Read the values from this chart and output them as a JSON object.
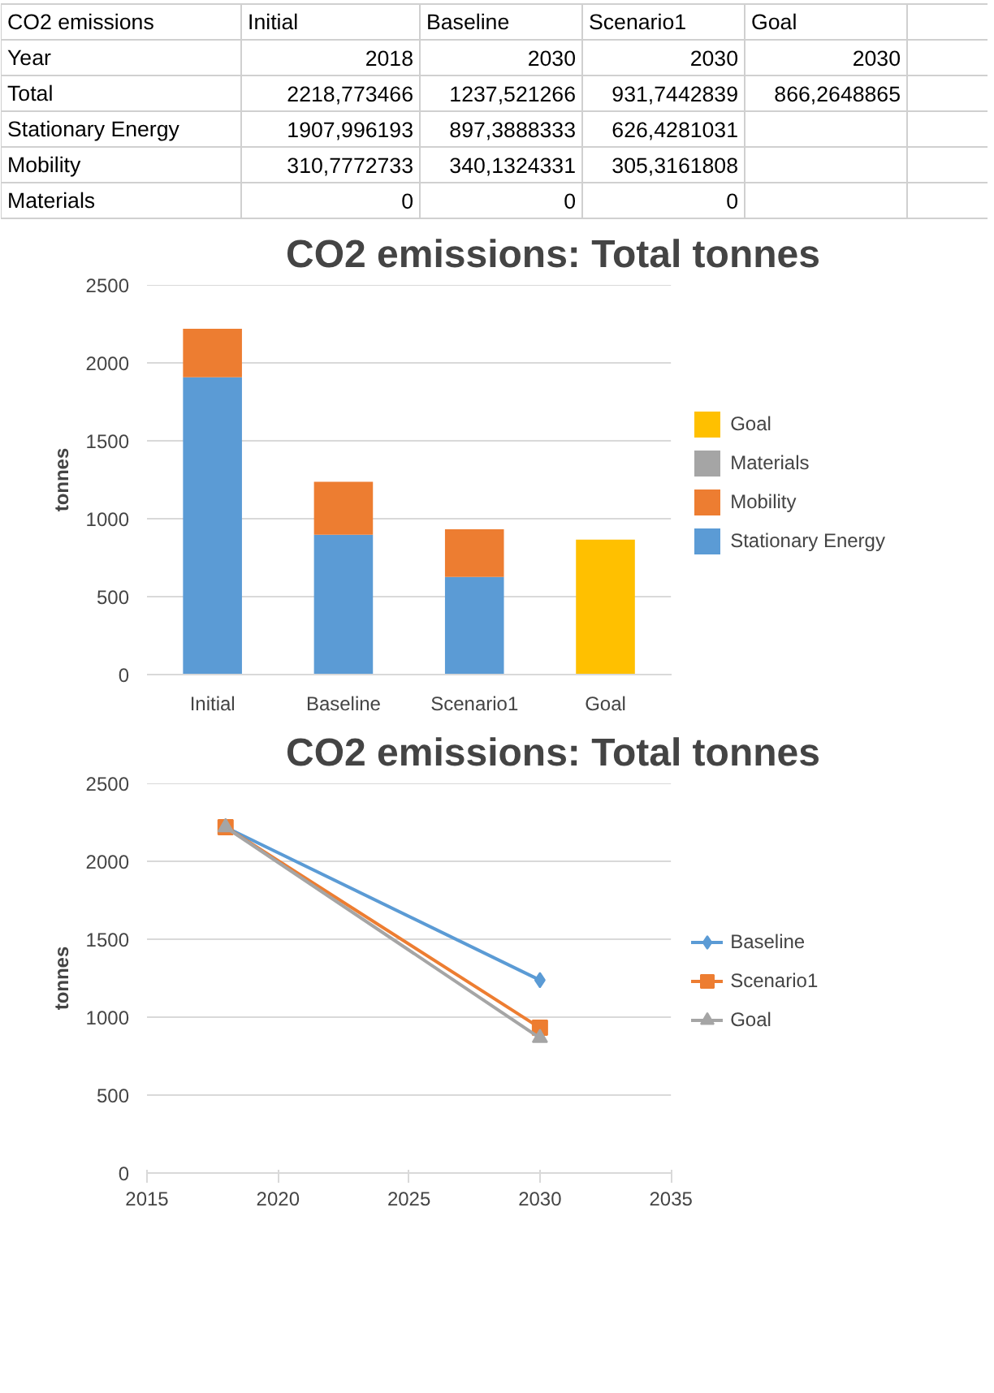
{
  "chart_data": [
    {
      "type": "other",
      "title": "CO2 emissions",
      "categories": [
        "Initial",
        "Baseline",
        "Scenario1",
        "Goal"
      ],
      "y_categories": [
        "Year",
        "Total",
        "Stationary Energy",
        "Mobility",
        "Materials"
      ],
      "cell_labels": [
        [
          "2018",
          "2030",
          "2030",
          "2030"
        ],
        [
          "2218,773466",
          "1237,521266",
          "931,7442839",
          "866,2648865"
        ],
        [
          "1907,996193",
          "897,3888333",
          "626,4281031",
          null
        ],
        [
          "310,7772733",
          "340,1324331",
          "305,3161808",
          null
        ],
        [
          "0",
          "0",
          "0",
          null
        ]
      ]
    },
    {
      "type": "bar",
      "title": "CO2 emissions: Total tonnes",
      "ylabel": "tonnes",
      "stacked": true,
      "categories": [
        "Initial",
        "Baseline",
        "Scenario1",
        "Goal"
      ],
      "series": [
        {
          "name": "Stationary Energy",
          "color": "#5b9bd5",
          "values": [
            1907.996193,
            897.3888333,
            626.4281031,
            null
          ]
        },
        {
          "name": "Mobility",
          "color": "#ed7d31",
          "values": [
            310.7772733,
            340.1324331,
            305.3161808,
            null
          ]
        },
        {
          "name": "Materials",
          "color": "#a5a5a5",
          "values": [
            0,
            0,
            0,
            null
          ]
        },
        {
          "name": "Goal",
          "color": "#ffc000",
          "values": [
            null,
            null,
            null,
            866.2648865
          ]
        }
      ],
      "ylim": [
        0,
        2500
      ],
      "yticks": [
        0,
        500,
        1000,
        1500,
        2000,
        2500
      ],
      "grid": "y",
      "legend": "right"
    },
    {
      "type": "line",
      "title": "CO2 emissions: Total tonnes",
      "ylabel": "tonnes",
      "x": [
        2018,
        2030
      ],
      "series": [
        {
          "name": "Baseline",
          "color": "#5b9bd5",
          "marker": "diamond",
          "values": [
            2218.773466,
            1237.521266
          ]
        },
        {
          "name": "Scenario1",
          "color": "#ed7d31",
          "marker": "square",
          "values": [
            2218.773466,
            931.7442839
          ]
        },
        {
          "name": "Goal",
          "color": "#a5a5a5",
          "marker": "triangle",
          "values": [
            2218.773466,
            866.2648865
          ]
        }
      ],
      "xlim": [
        2015,
        2035
      ],
      "xticks": [
        2015,
        2020,
        2025,
        2030,
        2035
      ],
      "ylim": [
        0,
        2500
      ],
      "yticks": [
        0,
        500,
        1000,
        1500,
        2000,
        2500
      ],
      "grid": "y",
      "legend": "right",
      "line_style": "solid"
    }
  ]
}
